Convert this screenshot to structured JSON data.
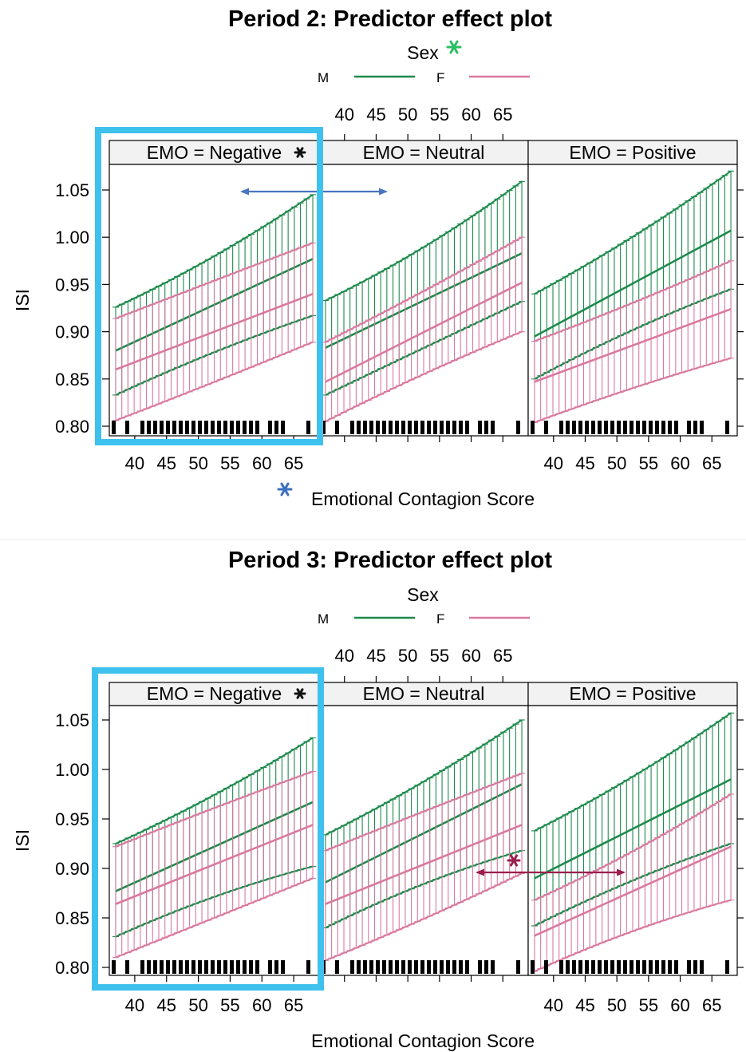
{
  "colors": {
    "male": "#1e8a4c",
    "female": "#d9799f",
    "highlight_box": "#3fc1ee",
    "arrow_blue": "#4a74c4",
    "arrow_red": "#9a1e4e",
    "sex_star": "#2dbe64",
    "xlabel_star": "#3a6fc0"
  },
  "chart_data": [
    {
      "type": "line",
      "title": "Period 2: Predictor effect plot",
      "xlabel": "Emotional Contagion Score",
      "ylabel": "ISI",
      "legend": {
        "title": "Sex",
        "placement": "top",
        "entries": [
          "M",
          "F"
        ]
      },
      "panels": [
        "EMO = Negative",
        "EMO = Neutral",
        "EMO = Positive"
      ],
      "xlim": [
        36,
        69
      ],
      "ylim": [
        0.795,
        1.085
      ],
      "xticks": [
        "40",
        "45",
        "50",
        "55",
        "60",
        "65"
      ],
      "yticks": [
        "0.80",
        "0.85",
        "0.90",
        "0.95",
        "1.00",
        "1.05"
      ],
      "grid": false,
      "annotations": [
        "star on Sex legend",
        "star on EMO = Negative panel",
        "star before x-axis label",
        "double-headed arrow across Negative/Neutral panels",
        "highlight box around EMO = Negative panel"
      ],
      "series": [
        {
          "name": "M",
          "panel": "EMO = Negative",
          "x_range": [
            37,
            68
          ],
          "fit": [
            0.88,
            0.977
          ],
          "lower": [
            0.833,
            0.917
          ],
          "upper": [
            0.926,
            1.045
          ]
        },
        {
          "name": "F",
          "panel": "EMO = Negative",
          "x_range": [
            37,
            68
          ],
          "fit": [
            0.86,
            0.94
          ],
          "lower": [
            0.806,
            0.889
          ],
          "upper": [
            0.914,
            0.994
          ]
        },
        {
          "name": "M",
          "panel": "EMO = Neutral",
          "x_range": [
            37,
            68
          ],
          "fit": [
            0.883,
            0.983
          ],
          "lower": [
            0.833,
            0.932
          ],
          "upper": [
            0.933,
            1.059
          ]
        },
        {
          "name": "F",
          "panel": "EMO = Neutral",
          "x_range": [
            37,
            68
          ],
          "fit": [
            0.847,
            0.952
          ],
          "lower": [
            0.805,
            0.9
          ],
          "upper": [
            0.889,
            1.0
          ]
        },
        {
          "name": "M",
          "panel": "EMO = Positive",
          "x_range": [
            37,
            68
          ],
          "fit": [
            0.895,
            1.007
          ],
          "lower": [
            0.85,
            0.945
          ],
          "upper": [
            0.94,
            1.07
          ]
        },
        {
          "name": "F",
          "panel": "EMO = Positive",
          "x_range": [
            37,
            68
          ],
          "fit": [
            0.847,
            0.924
          ],
          "lower": [
            0.804,
            0.872
          ],
          "upper": [
            0.89,
            0.975
          ]
        }
      ]
    },
    {
      "type": "line",
      "title": "Period 3: Predictor effect plot",
      "xlabel": "Emotional Contagion Score",
      "ylabel": "ISI",
      "legend": {
        "title": "Sex",
        "placement": "top",
        "entries": [
          "M",
          "F"
        ]
      },
      "panels": [
        "EMO = Negative",
        "EMO = Neutral",
        "EMO = Positive"
      ],
      "xlim": [
        36,
        69
      ],
      "ylim": [
        0.795,
        1.085
      ],
      "xticks": [
        "40",
        "45",
        "50",
        "55",
        "60",
        "65"
      ],
      "yticks": [
        "0.80",
        "0.85",
        "0.90",
        "0.95",
        "1.00",
        "1.05"
      ],
      "grid": false,
      "annotations": [
        "star on EMO = Negative panel",
        "star with double-headed arrow across Neutral/Positive panels",
        "highlight box around EMO = Negative panel"
      ],
      "series": [
        {
          "name": "M",
          "panel": "EMO = Negative",
          "x_range": [
            37,
            68
          ],
          "fit": [
            0.877,
            0.967
          ],
          "lower": [
            0.831,
            0.902
          ],
          "upper": [
            0.925,
            1.032
          ]
        },
        {
          "name": "F",
          "panel": "EMO = Negative",
          "x_range": [
            37,
            68
          ],
          "fit": [
            0.864,
            0.944
          ],
          "lower": [
            0.81,
            0.89
          ],
          "upper": [
            0.922,
            0.998
          ]
        },
        {
          "name": "M",
          "panel": "EMO = Neutral",
          "x_range": [
            37,
            68
          ],
          "fit": [
            0.886,
            0.985
          ],
          "lower": [
            0.84,
            0.918
          ],
          "upper": [
            0.934,
            1.05
          ]
        },
        {
          "name": "F",
          "panel": "EMO = Neutral",
          "x_range": [
            37,
            68
          ],
          "fit": [
            0.864,
            0.944
          ],
          "lower": [
            0.807,
            0.895
          ],
          "upper": [
            0.918,
            0.996
          ]
        },
        {
          "name": "M",
          "panel": "EMO = Positive",
          "x_range": [
            37,
            68
          ],
          "fit": [
            0.89,
            0.99
          ],
          "lower": [
            0.842,
            0.925
          ],
          "upper": [
            0.938,
            1.057
          ]
        },
        {
          "name": "F",
          "panel": "EMO = Positive",
          "x_range": [
            37,
            68
          ],
          "fit": [
            0.832,
            0.922
          ],
          "lower": [
            0.796,
            0.868
          ],
          "upper": [
            0.868,
            0.975
          ]
        }
      ]
    }
  ]
}
